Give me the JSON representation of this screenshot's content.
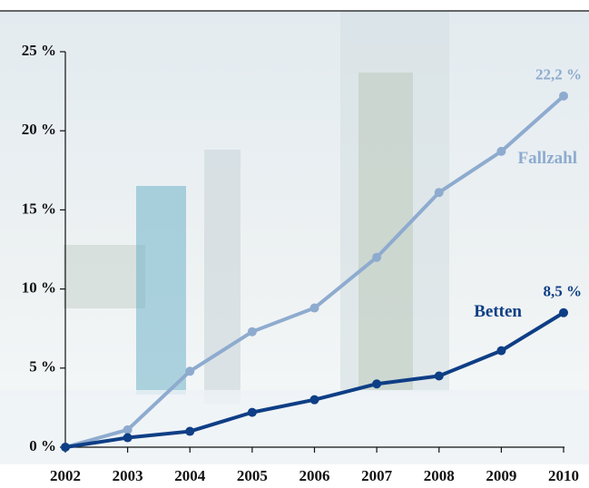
{
  "chart_data": {
    "type": "line",
    "categories": [
      "2002",
      "2003",
      "2004",
      "2005",
      "2006",
      "2007",
      "2008",
      "2009",
      "2010"
    ],
    "series": [
      {
        "name": "Fallzahl",
        "color": "#8eabcf",
        "values": [
          0,
          1.1,
          4.8,
          7.3,
          8.8,
          12.0,
          16.1,
          18.7,
          22.2
        ],
        "value_labels": [
          null,
          null,
          null,
          null,
          null,
          null,
          null,
          null,
          "22,2 %"
        ]
      },
      {
        "name": "Betten",
        "color": "#0e3e85",
        "values": [
          0,
          0.6,
          1.0,
          2.2,
          3.0,
          4.0,
          4.5,
          6.1,
          8.5
        ],
        "value_labels": [
          null,
          null,
          null,
          null,
          null,
          null,
          null,
          null,
          "8,5 %"
        ]
      }
    ],
    "ylim": [
      0,
      25
    ],
    "yticks": [
      {
        "value": 0,
        "label": "0 %"
      },
      {
        "value": 5,
        "label": "5 %"
      },
      {
        "value": 10,
        "label": "10 %"
      },
      {
        "value": 15,
        "label": "15 %"
      },
      {
        "value": 20,
        "label": "20 %"
      },
      {
        "value": 25,
        "label": "25 %"
      }
    ]
  }
}
